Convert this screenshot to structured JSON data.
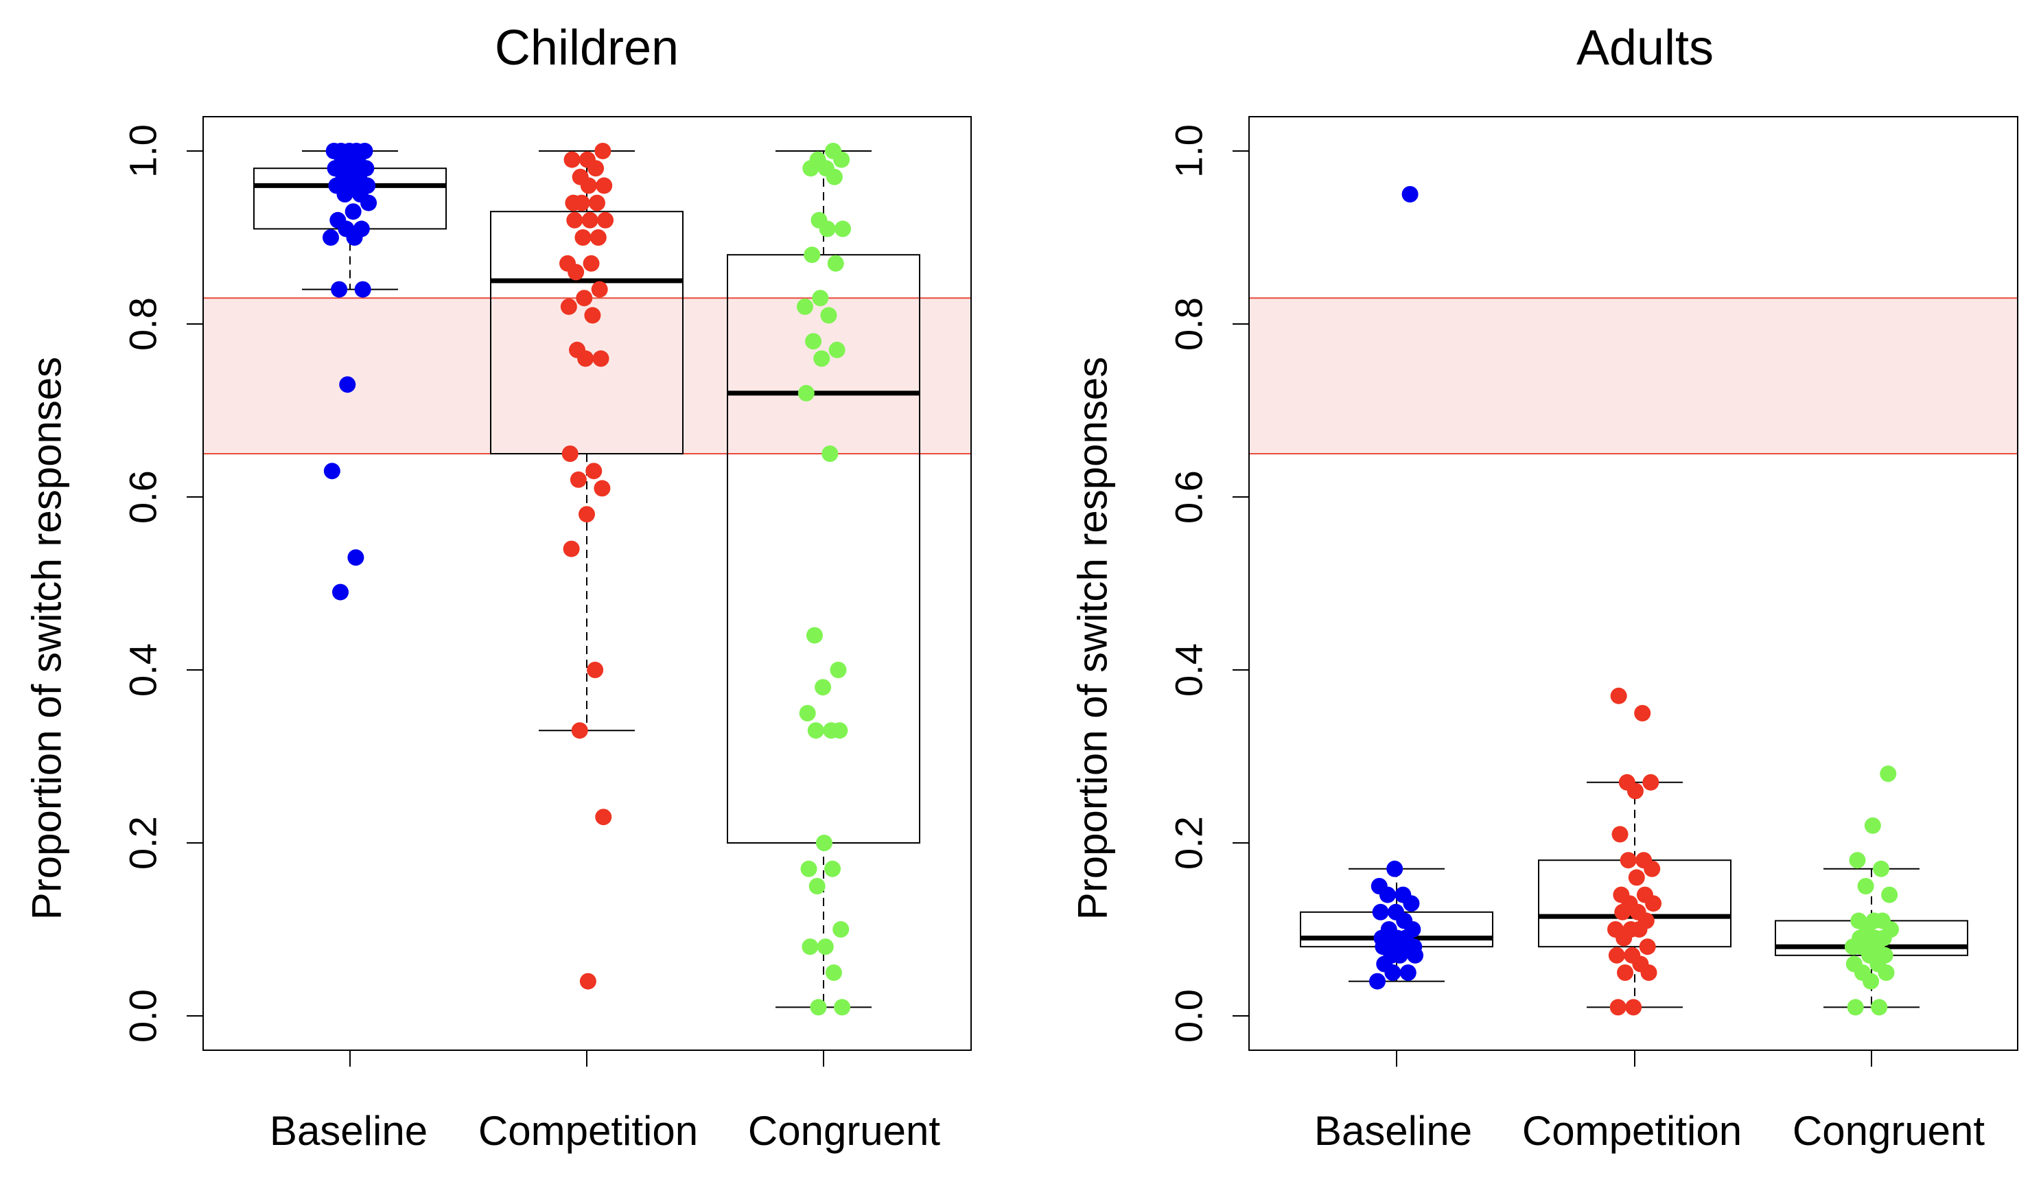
{
  "y_axis_label": "Proportion of switch responses",
  "colors": {
    "Baseline": "#0000f0",
    "Competition": "#ee3422",
    "Congruent": "#80f352",
    "band_fill": "#fbe8e6",
    "band_line": "#e84c3d"
  },
  "chart_data": [
    {
      "type": "box",
      "title": "Children",
      "xlabel": "",
      "ylabel": "Proportion of switch responses",
      "ylim": [
        0,
        1
      ],
      "yticks": [
        "0.0",
        "0.2",
        "0.4",
        "0.6",
        "0.8",
        "1.0"
      ],
      "categories": [
        "Baseline",
        "Competition",
        "Congruent"
      ],
      "reference_band": [
        0.65,
        0.83
      ],
      "boxes": [
        {
          "name": "Baseline",
          "whisker_low": 0.84,
          "q1": 0.91,
          "median": 0.96,
          "q3": 0.98,
          "whisker_high": 1.0
        },
        {
          "name": "Competition",
          "whisker_low": 0.33,
          "q1": 0.65,
          "median": 0.85,
          "q3": 0.93,
          "whisker_high": 1.0
        },
        {
          "name": "Congruent",
          "whisker_low": 0.01,
          "q1": 0.2,
          "median": 0.72,
          "q3": 0.88,
          "whisker_high": 1.0
        }
      ],
      "points": [
        {
          "category": "Baseline",
          "values": [
            1.0,
            1.0,
            1.0,
            1.0,
            1.0,
            0.99,
            0.99,
            0.98,
            0.98,
            0.98,
            0.97,
            0.97,
            0.96,
            0.96,
            0.96,
            0.95,
            0.95,
            0.94,
            0.93,
            0.92,
            0.91,
            0.91,
            0.9,
            0.9,
            0.84,
            0.84,
            0.73,
            0.63,
            0.53,
            0.49
          ]
        },
        {
          "category": "Competition",
          "values": [
            1.0,
            0.99,
            0.99,
            0.98,
            0.97,
            0.96,
            0.96,
            0.94,
            0.94,
            0.94,
            0.92,
            0.92,
            0.92,
            0.9,
            0.9,
            0.87,
            0.87,
            0.86,
            0.84,
            0.83,
            0.82,
            0.81,
            0.77,
            0.76,
            0.76,
            0.65,
            0.63,
            0.62,
            0.61,
            0.58,
            0.54,
            0.4,
            0.33,
            0.23,
            0.04
          ]
        },
        {
          "category": "Congruent",
          "values": [
            1.0,
            0.99,
            0.99,
            0.98,
            0.98,
            0.97,
            0.92,
            0.91,
            0.91,
            0.88,
            0.87,
            0.83,
            0.82,
            0.81,
            0.78,
            0.77,
            0.76,
            0.72,
            0.65,
            0.44,
            0.4,
            0.38,
            0.35,
            0.33,
            0.33,
            0.33,
            0.2,
            0.17,
            0.17,
            0.15,
            0.1,
            0.08,
            0.08,
            0.05,
            0.01,
            0.01
          ]
        }
      ]
    },
    {
      "type": "box",
      "title": "Adults",
      "xlabel": "",
      "ylabel": "Proportion of switch responses",
      "ylim": [
        0,
        1
      ],
      "yticks": [
        "0.0",
        "0.2",
        "0.4",
        "0.6",
        "0.8",
        "1.0"
      ],
      "categories": [
        "Baseline",
        "Competition",
        "Congruent"
      ],
      "reference_band": [
        0.65,
        0.83
      ],
      "boxes": [
        {
          "name": "Baseline",
          "whisker_low": 0.04,
          "q1": 0.08,
          "median": 0.09,
          "q3": 0.12,
          "whisker_high": 0.17
        },
        {
          "name": "Competition",
          "whisker_low": 0.01,
          "q1": 0.08,
          "median": 0.115,
          "q3": 0.18,
          "whisker_high": 0.27
        },
        {
          "name": "Congruent",
          "whisker_low": 0.01,
          "q1": 0.07,
          "median": 0.08,
          "q3": 0.11,
          "whisker_high": 0.17
        }
      ],
      "points": [
        {
          "category": "Baseline",
          "values": [
            0.95,
            0.17,
            0.15,
            0.14,
            0.14,
            0.13,
            0.12,
            0.12,
            0.11,
            0.1,
            0.1,
            0.09,
            0.09,
            0.09,
            0.09,
            0.08,
            0.08,
            0.08,
            0.08,
            0.07,
            0.07,
            0.07,
            0.06,
            0.05,
            0.05,
            0.04
          ]
        },
        {
          "category": "Competition",
          "values": [
            0.37,
            0.35,
            0.27,
            0.27,
            0.26,
            0.21,
            0.18,
            0.18,
            0.17,
            0.16,
            0.14,
            0.14,
            0.13,
            0.13,
            0.12,
            0.12,
            0.11,
            0.1,
            0.1,
            0.1,
            0.09,
            0.08,
            0.07,
            0.07,
            0.06,
            0.05,
            0.05,
            0.01,
            0.01
          ]
        },
        {
          "category": "Congruent",
          "values": [
            0.28,
            0.22,
            0.18,
            0.17,
            0.15,
            0.14,
            0.11,
            0.11,
            0.11,
            0.1,
            0.1,
            0.09,
            0.09,
            0.09,
            0.08,
            0.08,
            0.08,
            0.08,
            0.07,
            0.07,
            0.06,
            0.06,
            0.05,
            0.05,
            0.04,
            0.01,
            0.01
          ]
        }
      ]
    }
  ]
}
